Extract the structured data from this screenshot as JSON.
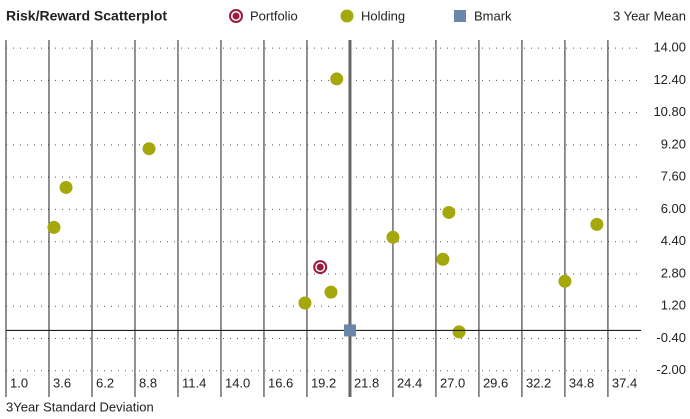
{
  "chart_data": {
    "type": "scatter",
    "title": "Risk/Reward Scatterplot",
    "x_label": "3Year Standard Deviation",
    "y_label": "3  Year Mean",
    "xlim": [
      1.0,
      39.4
    ],
    "ylim": [
      -3.3,
      14.4
    ],
    "xticks": [
      {
        "value": 1,
        "label": "1.0"
      },
      3.6,
      6.2,
      8.8,
      11.4,
      {
        "value": 14,
        "label": "14.0"
      },
      16.6,
      19.2,
      21.8,
      24.4,
      {
        "value": 27,
        "label": "27.0"
      },
      29.6,
      32.2,
      34.8,
      37.4
    ],
    "yticks": [
      {
        "value": 14,
        "label": "14.00"
      },
      {
        "value": 12.4,
        "label": "12.40"
      },
      {
        "value": 10.8,
        "label": "10.80"
      },
      {
        "value": 9.2,
        "label": "9.20"
      },
      {
        "value": 7.6,
        "label": "7.60"
      },
      {
        "value": 6,
        "label": "6.00"
      },
      {
        "value": 4.4,
        "label": "4.40"
      },
      {
        "value": 2.8,
        "label": "2.80"
      },
      {
        "value": 1.2,
        "label": "1.20"
      },
      {
        "value": -0.4,
        "label": "-0.40"
      },
      {
        "value": -2,
        "label": "-2.00"
      }
    ],
    "series": [
      {
        "name": "Portfolio",
        "marker": "ring",
        "color": "#9b1b3e",
        "x": [
          20.0
        ],
        "values": [
          3.14
        ]
      },
      {
        "name": "Holding",
        "marker": "circle",
        "color": "#a5a80a",
        "x": [
          21.0,
          9.65,
          4.63,
          3.9,
          27.78,
          24.4,
          36.73,
          27.42,
          34.8,
          20.65,
          19.08,
          28.4
        ],
        "values": [
          12.47,
          9.01,
          7.09,
          5.11,
          5.85,
          4.62,
          5.26,
          3.53,
          2.44,
          1.9,
          1.36,
          -0.07
        ]
      },
      {
        "name": "Bmark",
        "marker": "square",
        "color": "#6a86a8",
        "x": [
          21.8
        ],
        "values": [
          0
        ]
      }
    ]
  }
}
